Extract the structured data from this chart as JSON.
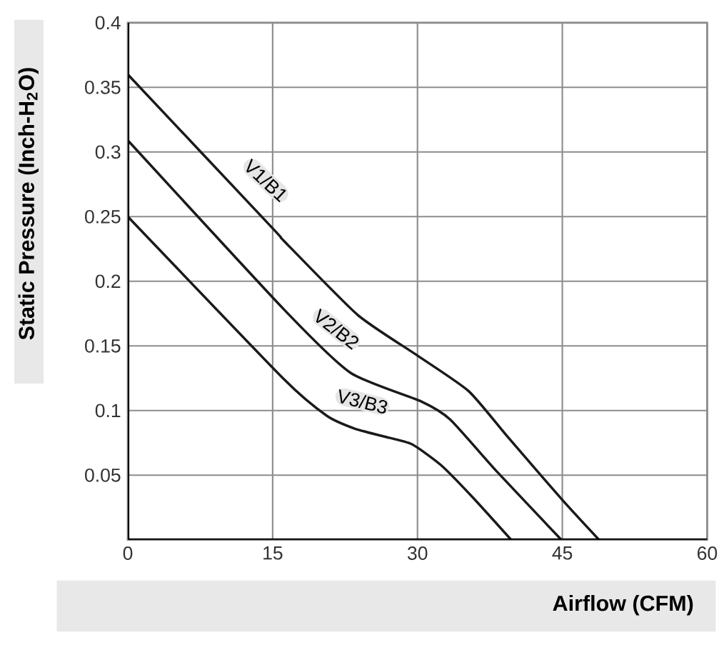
{
  "chart_data": {
    "type": "line",
    "xlabel": "Airflow (CFM)",
    "ylabel": "Static Pressure (Inch-H$_{2}$O)",
    "xlim": [
      0,
      60
    ],
    "ylim": [
      0,
      0.4
    ],
    "xticks": [
      0,
      15,
      30,
      45,
      60
    ],
    "yticks": [
      0.05,
      0.1,
      0.15,
      0.2,
      0.25,
      0.3,
      0.35,
      0.4
    ],
    "grid": true,
    "marker": "none",
    "line_style": "solid",
    "series": [
      {
        "color": "#1a1a1a",
        "x": [
          0,
          15,
          16.2,
          23.8,
          29.9,
          35.3,
          39.3,
          45.1,
          48.8
        ],
        "values": [
          0.36,
          0.241,
          0.231,
          0.174,
          0.143,
          0.115,
          0.08,
          0.03,
          0
        ]
      },
      {
        "color": "#1a1a1a",
        "x": [
          0,
          16.2,
          23.1,
          30.4,
          33.4,
          38.2,
          44.9
        ],
        "values": [
          0.309,
          0.178,
          0.129,
          0.107,
          0.093,
          0.053,
          0
        ]
      },
      {
        "color": "#1a1a1a",
        "x": [
          0,
          16.2,
          20.6,
          23.5,
          26.5,
          29.4,
          32.4,
          35.7,
          39.7
        ],
        "values": [
          0.25,
          0.124,
          0.096,
          0.086,
          0.08,
          0.074,
          0.058,
          0.033,
          0
        ]
      }
    ],
    "annotations": [
      {
        "text": "V1/B1",
        "x": 14.3,
        "y": 0.278
      },
      {
        "text": "V2/B2",
        "x": 21.6,
        "y": 0.163
      },
      {
        "text": "V3/B3",
        "x": 24.3,
        "y": 0.107
      }
    ]
  }
}
